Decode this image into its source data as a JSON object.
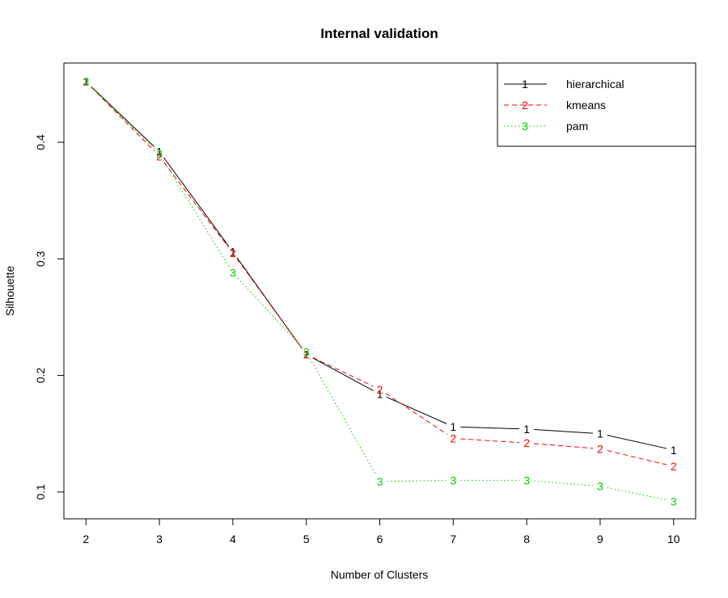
{
  "chart_data": {
    "type": "line",
    "title": "Internal validation",
    "xlabel": "Number of Clusters",
    "ylabel": "Silhouette",
    "x": [
      2,
      3,
      4,
      5,
      6,
      7,
      8,
      9,
      10
    ],
    "xlim": [
      1.7,
      10.3
    ],
    "ylim": [
      0.077,
      0.468
    ],
    "xticks": [
      "2",
      "3",
      "4",
      "5",
      "6",
      "7",
      "8",
      "9",
      "10"
    ],
    "yticks": [
      "0.1",
      "0.2",
      "0.3",
      "0.4"
    ],
    "grid": false,
    "legend_position": "top-right",
    "series": [
      {
        "name": "hierarchical",
        "symbol": "1",
        "color": "#000000",
        "line_style": "solid",
        "values": [
          0.452,
          0.392,
          0.306,
          0.218,
          0.184,
          0.156,
          0.154,
          0.15,
          0.136
        ]
      },
      {
        "name": "kmeans",
        "symbol": "2",
        "color": "#ff0000",
        "line_style": "dashed",
        "values": [
          0.452,
          0.388,
          0.305,
          0.218,
          0.188,
          0.146,
          0.142,
          0.137,
          0.122
        ]
      },
      {
        "name": "pam",
        "symbol": "3",
        "color": "#00cd00",
        "line_style": "dotted",
        "values": [
          0.452,
          0.39,
          0.288,
          0.22,
          0.109,
          0.11,
          0.11,
          0.105,
          0.092
        ]
      }
    ]
  }
}
